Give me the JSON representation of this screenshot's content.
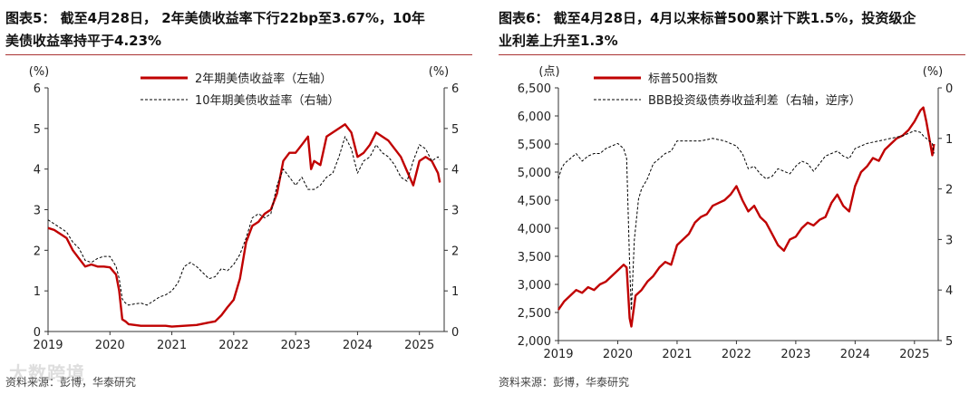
{
  "chart_data": [
    {
      "type": "line",
      "title_lines": [
        "图表5： 截至4月28日， 2年美债收益率下行22bp至3.67%，10年",
        "美债收益率持平于4.23%"
      ],
      "left_unit": "(%)",
      "right_unit": "(%)",
      "ylim": [
        0,
        6
      ],
      "y2lim": [
        0,
        6
      ],
      "yticks": [
        "0",
        "1",
        "2",
        "3",
        "4",
        "5",
        "6"
      ],
      "y2ticks": [
        "0",
        "1",
        "2",
        "3",
        "4",
        "5",
        "6"
      ],
      "xticks": [
        "2019",
        "2020",
        "2021",
        "2022",
        "2023",
        "2024",
        "2025"
      ],
      "xlim": [
        2019.0,
        2025.4
      ],
      "series": [
        {
          "name": "2年期美债收益率（左轴）",
          "axis": "left",
          "color": "#c00000",
          "style": "solid",
          "x": [
            2019.0,
            2019.1,
            2019.2,
            2019.3,
            2019.4,
            2019.5,
            2019.6,
            2019.7,
            2019.8,
            2019.9,
            2020.0,
            2020.1,
            2020.15,
            2020.2,
            2020.25,
            2020.3,
            2020.4,
            2020.5,
            2020.7,
            2020.9,
            2021.0,
            2021.2,
            2021.4,
            2021.6,
            2021.7,
            2021.8,
            2021.9,
            2022.0,
            2022.1,
            2022.2,
            2022.3,
            2022.4,
            2022.5,
            2022.6,
            2022.7,
            2022.8,
            2022.9,
            2023.0,
            2023.1,
            2023.2,
            2023.25,
            2023.3,
            2023.4,
            2023.5,
            2023.6,
            2023.7,
            2023.8,
            2023.9,
            2024.0,
            2024.1,
            2024.2,
            2024.3,
            2024.4,
            2024.5,
            2024.6,
            2024.7,
            2024.8,
            2024.9,
            2025.0,
            2025.1,
            2025.2,
            2025.3,
            2025.33
          ],
          "values": [
            2.55,
            2.5,
            2.4,
            2.3,
            2.0,
            1.8,
            1.6,
            1.65,
            1.6,
            1.6,
            1.58,
            1.4,
            1.0,
            0.3,
            0.25,
            0.18,
            0.16,
            0.14,
            0.14,
            0.14,
            0.12,
            0.14,
            0.16,
            0.22,
            0.25,
            0.4,
            0.6,
            0.78,
            1.3,
            2.2,
            2.6,
            2.7,
            2.9,
            3.0,
            3.4,
            4.2,
            4.4,
            4.4,
            4.6,
            4.8,
            4.0,
            4.2,
            4.1,
            4.8,
            4.9,
            5.0,
            5.1,
            4.9,
            4.3,
            4.4,
            4.6,
            4.9,
            4.8,
            4.7,
            4.5,
            4.3,
            3.95,
            3.6,
            4.2,
            4.3,
            4.2,
            3.9,
            3.67
          ]
        },
        {
          "name": "10年期美债收益率（右轴）",
          "axis": "right",
          "color": "#000000",
          "style": "dashed",
          "x": [
            2019.0,
            2019.1,
            2019.2,
            2019.3,
            2019.4,
            2019.5,
            2019.6,
            2019.7,
            2019.8,
            2019.9,
            2020.0,
            2020.1,
            2020.15,
            2020.2,
            2020.25,
            2020.3,
            2020.4,
            2020.5,
            2020.6,
            2020.7,
            2020.8,
            2020.9,
            2021.0,
            2021.1,
            2021.2,
            2021.3,
            2021.4,
            2021.5,
            2021.6,
            2021.7,
            2021.8,
            2021.9,
            2022.0,
            2022.1,
            2022.2,
            2022.3,
            2022.4,
            2022.5,
            2022.6,
            2022.7,
            2022.8,
            2022.9,
            2023.0,
            2023.1,
            2023.2,
            2023.3,
            2023.4,
            2023.5,
            2023.6,
            2023.7,
            2023.8,
            2023.9,
            2024.0,
            2024.1,
            2024.2,
            2024.3,
            2024.4,
            2024.5,
            2024.6,
            2024.7,
            2024.8,
            2024.9,
            2025.0,
            2025.1,
            2025.2,
            2025.3,
            2025.33
          ],
          "values": [
            2.75,
            2.65,
            2.55,
            2.45,
            2.2,
            2.05,
            1.75,
            1.7,
            1.8,
            1.85,
            1.85,
            1.6,
            1.3,
            0.8,
            0.7,
            0.65,
            0.68,
            0.7,
            0.65,
            0.75,
            0.85,
            0.9,
            1.0,
            1.2,
            1.6,
            1.7,
            1.6,
            1.45,
            1.3,
            1.35,
            1.55,
            1.5,
            1.65,
            1.9,
            2.3,
            2.8,
            2.9,
            2.8,
            2.9,
            3.6,
            4.0,
            3.8,
            3.6,
            3.8,
            3.5,
            3.5,
            3.6,
            3.8,
            3.9,
            4.3,
            4.8,
            4.5,
            3.9,
            4.2,
            4.3,
            4.6,
            4.4,
            4.3,
            4.1,
            3.8,
            3.7,
            4.2,
            4.6,
            4.5,
            4.2,
            4.3,
            4.23
          ]
        }
      ],
      "source": "资料来源：彭博，华泰研究"
    },
    {
      "type": "line",
      "title_lines": [
        "图表6： 截至4月28日，4月以来标普500累计下跌1.5%，投资级企",
        "业利差上升至1.3%"
      ],
      "left_unit": "(点)",
      "right_unit": "(%)",
      "ylim": [
        2000,
        6500
      ],
      "y2lim": [
        5,
        0
      ],
      "y2_reversed": true,
      "yticks": [
        "2,000",
        "2,500",
        "3,000",
        "3,500",
        "4,000",
        "4,500",
        "5,000",
        "5,500",
        "6,000",
        "6,500"
      ],
      "y2ticks": [
        "0",
        "1",
        "2",
        "3",
        "4",
        "5"
      ],
      "xticks": [
        "2019",
        "2020",
        "2021",
        "2022",
        "2023",
        "2024",
        "2025"
      ],
      "xlim": [
        2019.0,
        2025.4
      ],
      "series": [
        {
          "name": "标普500指数",
          "axis": "left",
          "color": "#c00000",
          "style": "solid",
          "x": [
            2019.0,
            2019.1,
            2019.2,
            2019.3,
            2019.4,
            2019.5,
            2019.6,
            2019.7,
            2019.8,
            2019.9,
            2020.0,
            2020.1,
            2020.15,
            2020.2,
            2020.23,
            2020.3,
            2020.4,
            2020.5,
            2020.6,
            2020.7,
            2020.8,
            2020.9,
            2021.0,
            2021.1,
            2021.2,
            2021.3,
            2021.4,
            2021.5,
            2021.6,
            2021.7,
            2021.8,
            2021.9,
            2022.0,
            2022.1,
            2022.2,
            2022.3,
            2022.4,
            2022.5,
            2022.6,
            2022.7,
            2022.8,
            2022.9,
            2023.0,
            2023.1,
            2023.2,
            2023.3,
            2023.4,
            2023.5,
            2023.6,
            2023.7,
            2023.8,
            2023.9,
            2024.0,
            2024.1,
            2024.2,
            2024.3,
            2024.4,
            2024.5,
            2024.6,
            2024.7,
            2024.8,
            2024.9,
            2025.0,
            2025.1,
            2025.15,
            2025.2,
            2025.25,
            2025.3,
            2025.33
          ],
          "values": [
            2550,
            2700,
            2800,
            2900,
            2850,
            2950,
            2900,
            3000,
            3050,
            3150,
            3250,
            3350,
            3300,
            2400,
            2250,
            2800,
            2900,
            3050,
            3150,
            3300,
            3400,
            3350,
            3700,
            3800,
            3900,
            4100,
            4200,
            4250,
            4400,
            4450,
            4500,
            4600,
            4750,
            4500,
            4300,
            4400,
            4200,
            4100,
            3900,
            3700,
            3600,
            3800,
            3850,
            4000,
            4100,
            4050,
            4150,
            4200,
            4450,
            4600,
            4400,
            4300,
            4750,
            5000,
            5100,
            5250,
            5200,
            5400,
            5500,
            5600,
            5650,
            5750,
            5900,
            6100,
            6150,
            5900,
            5600,
            5300,
            5500
          ]
        },
        {
          "name": "BBB投资级债券收益利差（右轴，逆序）",
          "axis": "right",
          "color": "#000000",
          "style": "dashed",
          "x": [
            2019.0,
            2019.05,
            2019.1,
            2019.2,
            2019.3,
            2019.4,
            2019.5,
            2019.6,
            2019.7,
            2019.8,
            2019.9,
            2020.0,
            2020.1,
            2020.15,
            2020.2,
            2020.23,
            2020.28,
            2020.35,
            2020.4,
            2020.5,
            2020.6,
            2020.7,
            2020.8,
            2020.9,
            2021.0,
            2021.2,
            2021.4,
            2021.6,
            2021.8,
            2021.9,
            2022.0,
            2022.1,
            2022.2,
            2022.3,
            2022.4,
            2022.5,
            2022.6,
            2022.7,
            2022.8,
            2022.9,
            2023.0,
            2023.1,
            2023.2,
            2023.3,
            2023.4,
            2023.5,
            2023.6,
            2023.7,
            2023.8,
            2023.9,
            2024.0,
            2024.2,
            2024.4,
            2024.6,
            2024.8,
            2024.9,
            2025.0,
            2025.1,
            2025.15,
            2025.2,
            2025.25,
            2025.3,
            2025.33
          ],
          "values": [
            1.8,
            1.6,
            1.5,
            1.4,
            1.3,
            1.45,
            1.35,
            1.3,
            1.3,
            1.2,
            1.15,
            1.1,
            1.2,
            1.4,
            3.5,
            4.4,
            3.0,
            2.2,
            2.0,
            1.8,
            1.5,
            1.4,
            1.3,
            1.25,
            1.05,
            1.05,
            1.05,
            1.0,
            1.05,
            1.1,
            1.15,
            1.3,
            1.6,
            1.55,
            1.7,
            1.8,
            1.75,
            1.6,
            1.65,
            1.7,
            1.55,
            1.45,
            1.5,
            1.65,
            1.5,
            1.35,
            1.3,
            1.25,
            1.35,
            1.4,
            1.2,
            1.1,
            1.05,
            1.0,
            0.95,
            0.9,
            0.85,
            0.88,
            0.95,
            1.0,
            1.05,
            1.1,
            1.3
          ]
        }
      ],
      "source": "资料来源：彭博，华泰研究"
    }
  ],
  "watermark": "大数跨境"
}
